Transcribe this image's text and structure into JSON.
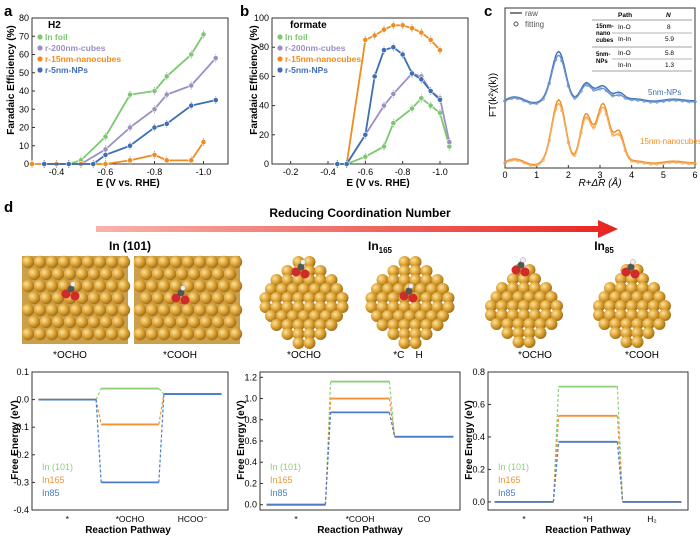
{
  "panel_labels": {
    "a": "a",
    "b": "b",
    "c": "c",
    "d": "d"
  },
  "colors": {
    "in_foil": "#7bc96f",
    "r200": "#9b8fc4",
    "r15": "#f08b1d",
    "r5": "#3d6fb5",
    "in101": "#8fcf7a",
    "in165": "#f39233",
    "in85": "#4a7cc7",
    "arrow": "#e8231e",
    "atom": "#d9a032"
  },
  "chart_data": [
    {
      "panel": "a",
      "type": "line",
      "title": "H2",
      "xlabel": "E (V vs. RHE)",
      "ylabel": "Faradaic Efficiency (%)",
      "xlim": [
        -0.3,
        -1.1
      ],
      "ylim": [
        0,
        80
      ],
      "xticks": [
        "-0.4",
        "-0.6",
        "-0.8",
        "-1.0"
      ],
      "yticks": [
        "0",
        "10",
        "20",
        "30",
        "40",
        "50",
        "60",
        "70",
        "80"
      ],
      "series": [
        {
          "name": "In foil",
          "color": "#7bc96f",
          "x": [
            -0.35,
            -0.45,
            -0.5,
            -0.6,
            -0.7,
            -0.8,
            -0.85,
            -0.95,
            -1.0
          ],
          "y": [
            0,
            0,
            2,
            15,
            38,
            40,
            48,
            60,
            71
          ]
        },
        {
          "name": "r-200nm-cubes",
          "color": "#9b8fc4",
          "x": [
            -0.35,
            -0.45,
            -0.5,
            -0.6,
            -0.7,
            -0.8,
            -0.85,
            -0.95,
            -1.05
          ],
          "y": [
            0,
            0,
            0,
            8,
            20,
            30,
            38,
            43,
            58
          ]
        },
        {
          "name": "r-15nm-nanocubes",
          "color": "#f08b1d",
          "x": [
            -0.3,
            -0.4,
            -0.5,
            -0.6,
            -0.7,
            -0.8,
            -0.85,
            -0.95,
            -1.0
          ],
          "y": [
            0,
            0,
            0,
            0,
            2,
            5,
            2,
            2,
            12
          ]
        },
        {
          "name": "r-5nm-NPs",
          "color": "#3d6fb5",
          "x": [
            -0.35,
            -0.45,
            -0.55,
            -0.6,
            -0.7,
            -0.8,
            -0.85,
            -0.95,
            -1.05
          ],
          "y": [
            0,
            0,
            0,
            5,
            10,
            20,
            22,
            32,
            35
          ]
        }
      ]
    },
    {
      "panel": "b",
      "type": "line",
      "title": "formate",
      "xlabel": "E (V vs. RHE)",
      "ylabel": "Faradaic Efficiency (%)",
      "xlim": [
        -0.1,
        -1.15
      ],
      "ylim": [
        0,
        100
      ],
      "xticks": [
        "-0.2",
        "-0.4",
        "-0.6",
        "-0.8",
        "-1.0"
      ],
      "yticks": [
        "0",
        "20",
        "40",
        "60",
        "80",
        "100"
      ],
      "series": [
        {
          "name": "In foil",
          "color": "#7bc96f",
          "x": [
            -0.45,
            -0.5,
            -0.6,
            -0.7,
            -0.75,
            -0.85,
            -0.9,
            -0.95,
            -1.0,
            -1.05
          ],
          "y": [
            0,
            0,
            5,
            12,
            28,
            38,
            45,
            40,
            35,
            12
          ]
        },
        {
          "name": "r-200nm-cubes",
          "color": "#9b8fc4",
          "x": [
            -0.45,
            -0.5,
            -0.6,
            -0.7,
            -0.75,
            -0.85,
            -0.9,
            -0.95,
            -1.0,
            -1.05
          ],
          "y": [
            0,
            0,
            20,
            40,
            48,
            62,
            60,
            50,
            45,
            15
          ]
        },
        {
          "name": "r-15nm-nanocubes",
          "color": "#f08b1d",
          "x": [
            -0.45,
            -0.5,
            -0.6,
            -0.65,
            -0.7,
            -0.75,
            -0.8,
            -0.85,
            -0.9,
            -0.95,
            -1.0
          ],
          "y": [
            0,
            0,
            85,
            88,
            92,
            95,
            95,
            93,
            90,
            85,
            78
          ]
        },
        {
          "name": "r-5nm-NPs",
          "color": "#3d6fb5",
          "x": [
            -0.45,
            -0.5,
            -0.6,
            -0.65,
            -0.7,
            -0.75,
            -0.8,
            -0.85,
            -0.9,
            -0.95,
            -1.0
          ],
          "y": [
            0,
            0,
            20,
            60,
            78,
            80,
            75,
            62,
            58,
            50,
            44
          ]
        }
      ]
    },
    {
      "panel": "c",
      "type": "line",
      "xlabel": "R+ΔR (Å)",
      "ylabel": "FT(k²χ(k))",
      "xlim": [
        0,
        6
      ],
      "xticks": [
        "0",
        "1",
        "2",
        "3",
        "4",
        "5",
        "6"
      ],
      "legend": [
        "raw",
        "fitting"
      ],
      "labels": [
        "5nm-NPs",
        "15nm-nanocubes"
      ],
      "table": {
        "headers": [
          "Path",
          "N"
        ],
        "rows": [
          {
            "sample": "15nm-nano cubes",
            "path": "In-O",
            "n": "8"
          },
          {
            "sample": "",
            "path": "In-In",
            "n": "5.9"
          },
          {
            "sample": "5nm-NPs",
            "path": "In-O",
            "n": "5.8"
          },
          {
            "sample": "",
            "path": "In-In",
            "n": "1.3"
          }
        ]
      }
    },
    {
      "panel": "d1",
      "type": "line",
      "xlabel": "Reaction Pathway",
      "ylabel": "Free Energy (eV)",
      "ylim": [
        -0.4,
        0.1
      ],
      "yticks": [
        "-0.4",
        "-0.3",
        "-0.2",
        "-0.1",
        "0.0",
        "0.1"
      ],
      "categories": [
        "*",
        "*OCHO",
        "HCOO⁻"
      ],
      "series": [
        {
          "name": "In (101)",
          "color": "#8fcf7a",
          "values": [
            0.0,
            0.04,
            0.02
          ]
        },
        {
          "name": "In165",
          "color": "#f39233",
          "values": [
            0.0,
            -0.09,
            0.02
          ]
        },
        {
          "name": "In85",
          "color": "#4a7cc7",
          "values": [
            0.0,
            -0.3,
            0.02
          ]
        }
      ]
    },
    {
      "panel": "d2",
      "type": "line",
      "xlabel": "Reaction Pathway",
      "ylabel": "Free Energy (eV)",
      "ylim": [
        -0.05,
        1.25
      ],
      "yticks": [
        "0.0",
        "0.2",
        "0.4",
        "0.6",
        "0.8",
        "1.0",
        "1.2"
      ],
      "categories": [
        "*",
        "*COOH",
        "CO"
      ],
      "series": [
        {
          "name": "In (101)",
          "color": "#8fcf7a",
          "values": [
            0.0,
            1.16,
            0.64
          ]
        },
        {
          "name": "In165",
          "color": "#f39233",
          "values": [
            0.0,
            1.0,
            0.64
          ]
        },
        {
          "name": "In85",
          "color": "#4a7cc7",
          "values": [
            0.0,
            0.87,
            0.64
          ]
        }
      ]
    },
    {
      "panel": "d3",
      "type": "line",
      "xlabel": "Reaction Pathway",
      "ylabel": "Free Energy (eV)",
      "ylim": [
        -0.05,
        0.8
      ],
      "yticks": [
        "0.0",
        "0.2",
        "0.4",
        "0.6",
        "0.8"
      ],
      "categories": [
        "*",
        "*H",
        "H₂"
      ],
      "series": [
        {
          "name": "In (101)",
          "color": "#8fcf7a",
          "values": [
            0.0,
            0.71,
            0.0
          ]
        },
        {
          "name": "In165",
          "color": "#f39233",
          "values": [
            0.0,
            0.53,
            0.0
          ]
        },
        {
          "name": "In85",
          "color": "#4a7cc7",
          "values": [
            0.0,
            0.37,
            0.0
          ]
        }
      ]
    }
  ],
  "panel_d": {
    "arrow_label": "Reducing Coordination Number",
    "groups": [
      {
        "title": "In (101)",
        "labels": [
          "*OCHO",
          "*COOH"
        ]
      },
      {
        "title": "In165",
        "labels": [
          "*OCHO",
          "*C    H"
        ]
      },
      {
        "title": "In85",
        "labels": [
          "*OCHO",
          "*COOH"
        ]
      }
    ]
  }
}
